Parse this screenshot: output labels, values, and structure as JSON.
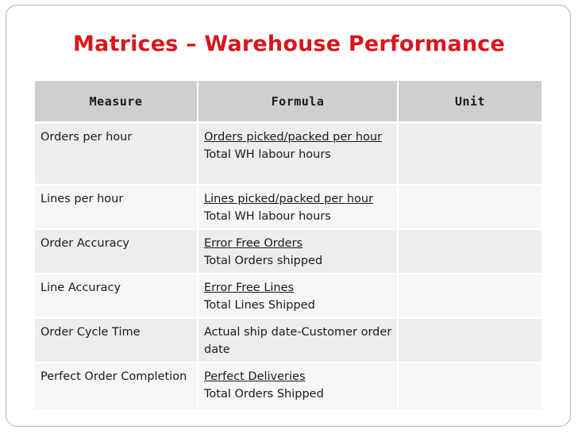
{
  "title": "Matrices – Warehouse Performance",
  "columns": [
    "Measure",
    "Formula",
    "Unit"
  ],
  "rows": [
    {
      "measure": "Orders per hour",
      "numerator": "Orders picked/packed per hour",
      "denominator": "Total WH labour hours",
      "unit": ""
    },
    {
      "measure": "Lines per hour",
      "numerator": "Lines picked/packed per hour",
      "denominator": "Total WH labour hours",
      "unit": ""
    },
    {
      "measure": "Order Accuracy",
      "numerator": "Error Free Orders",
      "denominator": "Total Orders shipped",
      "unit": ""
    },
    {
      "measure": "Line Accuracy",
      "numerator": "Error Free Lines",
      "denominator": "Total Lines Shipped",
      "unit": ""
    },
    {
      "measure": "Order Cycle Time",
      "numerator": "",
      "denominator": "Actual ship date-Customer order date",
      "unit": ""
    },
    {
      "measure": "Perfect Order Completion",
      "numerator": "Perfect Deliveries",
      "denominator": "Total Orders Shipped",
      "unit": ""
    }
  ],
  "colors": {
    "title": "#d8161c",
    "header_bg": "#cfcfcf",
    "row_bg": "#ededed"
  }
}
